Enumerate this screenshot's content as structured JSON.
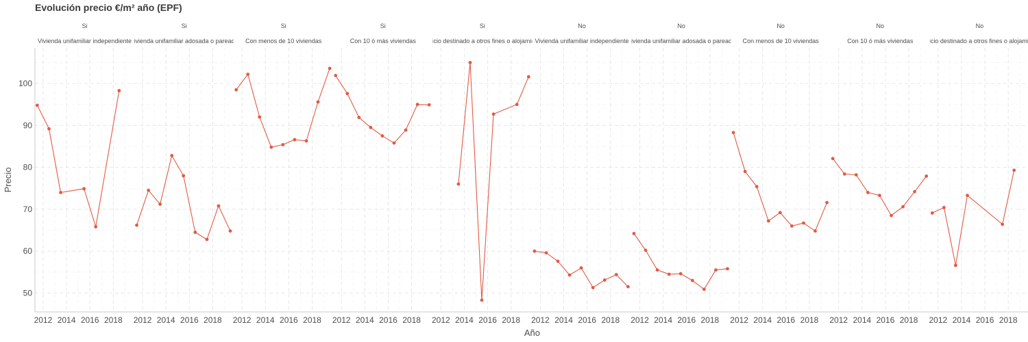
{
  "chart_data": {
    "type": "line",
    "title": "Evolución precio €/m² año (EPF)",
    "xlabel": "Año",
    "ylabel": "Precio",
    "x_ticks": [
      2012,
      2014,
      2016,
      2018
    ],
    "y_ticks": [
      50,
      60,
      70,
      80,
      90,
      100
    ],
    "xlim": [
      2011.3,
      2019.8
    ],
    "ylim": [
      45.5,
      108.5
    ],
    "color": "#e15a45",
    "grid": true,
    "facets": [
      {
        "group": "Si",
        "label": "Vivienda unifamiliar independiente",
        "points": [
          [
            2011.5,
            94.8
          ],
          [
            2012.5,
            89.2
          ],
          [
            2013.5,
            74.0
          ],
          [
            2015.5,
            74.9
          ],
          [
            2016.5,
            65.8
          ],
          [
            2018.5,
            98.3
          ]
        ]
      },
      {
        "group": "Si",
        "label": "Vivienda unifamiliar adosada o pareada",
        "points": [
          [
            2011.5,
            66.2
          ],
          [
            2012.5,
            74.5
          ],
          [
            2013.5,
            71.2
          ],
          [
            2014.5,
            82.8
          ],
          [
            2015.5,
            78.0
          ],
          [
            2016.5,
            64.5
          ],
          [
            2017.5,
            62.8
          ],
          [
            2018.5,
            70.8
          ],
          [
            2019.5,
            64.8
          ]
        ]
      },
      {
        "group": "Si",
        "label": "Con menos de 10 viviendas",
        "points": [
          [
            2011.5,
            98.5
          ],
          [
            2012.5,
            102.2
          ],
          [
            2013.5,
            92.0
          ],
          [
            2014.5,
            84.8
          ],
          [
            2015.5,
            85.4
          ],
          [
            2016.5,
            86.6
          ],
          [
            2017.5,
            86.3
          ],
          [
            2018.5,
            95.6
          ],
          [
            2019.5,
            103.6
          ]
        ]
      },
      {
        "group": "Si",
        "label": "Con 10 ó más viviendas",
        "points": [
          [
            2011.5,
            101.9
          ],
          [
            2012.5,
            97.6
          ],
          [
            2013.5,
            91.9
          ],
          [
            2014.5,
            89.5
          ],
          [
            2015.5,
            87.5
          ],
          [
            2016.5,
            85.8
          ],
          [
            2017.5,
            88.9
          ],
          [
            2018.5,
            95.0
          ],
          [
            2019.5,
            94.9
          ]
        ]
      },
      {
        "group": "Si",
        "label": "Edificio destinado a otros fines o alojamiento",
        "points": [
          [
            2013.5,
            76.0
          ],
          [
            2014.5,
            105.0
          ],
          [
            2015.5,
            48.3
          ],
          [
            2016.5,
            92.7
          ],
          [
            2018.5,
            95.0
          ],
          [
            2019.5,
            101.6
          ]
        ]
      },
      {
        "group": "No",
        "label": "Vivienda unifamiliar independiente",
        "points": [
          [
            2011.5,
            60.0
          ],
          [
            2012.5,
            59.6
          ],
          [
            2013.5,
            57.6
          ],
          [
            2014.5,
            54.3
          ],
          [
            2015.5,
            56.0
          ],
          [
            2016.5,
            51.3
          ],
          [
            2017.5,
            53.1
          ],
          [
            2018.5,
            54.4
          ],
          [
            2019.5,
            51.5
          ]
        ]
      },
      {
        "group": "No",
        "label": "Vivienda unifamiliar adosada o pareada",
        "points": [
          [
            2011.5,
            64.2
          ],
          [
            2012.5,
            60.2
          ],
          [
            2013.5,
            55.5
          ],
          [
            2014.5,
            54.5
          ],
          [
            2015.5,
            54.6
          ],
          [
            2016.5,
            53.0
          ],
          [
            2017.5,
            50.9
          ],
          [
            2018.5,
            55.5
          ],
          [
            2019.5,
            55.8
          ]
        ]
      },
      {
        "group": "No",
        "label": "Con menos de 10 viviendas",
        "points": [
          [
            2011.5,
            88.3
          ],
          [
            2012.5,
            79.0
          ],
          [
            2013.5,
            75.4
          ],
          [
            2014.5,
            67.2
          ],
          [
            2015.5,
            69.2
          ],
          [
            2016.5,
            66.0
          ],
          [
            2017.5,
            66.7
          ],
          [
            2018.5,
            64.8
          ],
          [
            2019.5,
            71.6
          ]
        ]
      },
      {
        "group": "No",
        "label": "Con 10 ó más viviendas",
        "points": [
          [
            2011.5,
            82.1
          ],
          [
            2012.5,
            78.4
          ],
          [
            2013.5,
            78.2
          ],
          [
            2014.5,
            74.0
          ],
          [
            2015.5,
            73.3
          ],
          [
            2016.5,
            68.5
          ],
          [
            2017.5,
            70.6
          ],
          [
            2018.5,
            74.2
          ],
          [
            2019.5,
            77.9
          ]
        ]
      },
      {
        "group": "No",
        "label": "Edificio destinado a otros fines o alojamiento",
        "points": [
          [
            2011.5,
            69.1
          ],
          [
            2012.5,
            70.4
          ],
          [
            2013.5,
            56.6
          ],
          [
            2014.5,
            73.3
          ],
          [
            2017.5,
            66.4
          ],
          [
            2018.5,
            79.3
          ]
        ]
      }
    ]
  }
}
